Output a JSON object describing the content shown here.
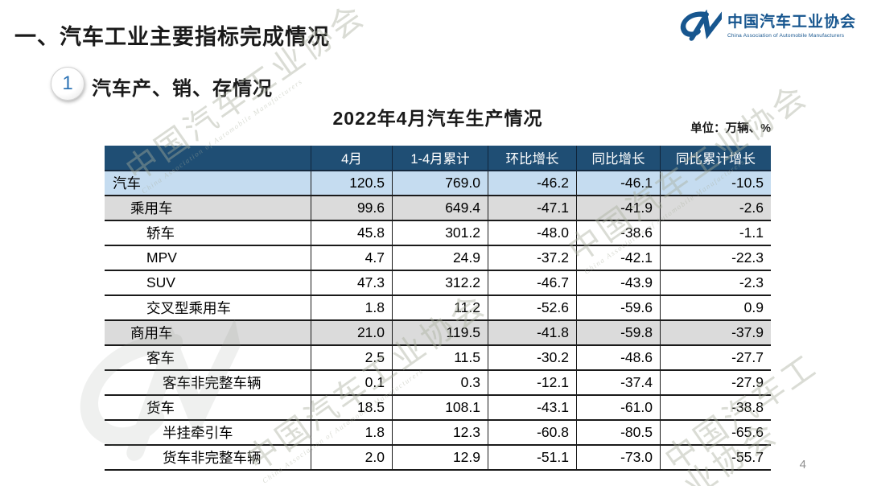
{
  "page": {
    "main_title": "一、汽车工业主要指标完成情况",
    "section_number": "1",
    "section_title": "汽车产、销、存情况",
    "page_number": "4"
  },
  "logo": {
    "cn": "中国汽车工业协会",
    "en": "China Association of Automobile Manufacturers"
  },
  "watermark": {
    "text": "中国汽车工业协会"
  },
  "table": {
    "title": "2022年4月汽车生产情况",
    "unit_label": "单位：万辆、%",
    "columns": [
      "",
      "4月",
      "1-4月累计",
      "环比增长",
      "同比增长",
      "同比累计增长"
    ],
    "rows": [
      {
        "label": "汽车",
        "indent": 0,
        "style": "blue",
        "values": [
          "120.5",
          "769.0",
          "-46.2",
          "-46.1",
          "-10.5"
        ]
      },
      {
        "label": "乘用车",
        "indent": 1,
        "style": "gray",
        "values": [
          "99.6",
          "649.4",
          "-47.1",
          "-41.9",
          "-2.6"
        ]
      },
      {
        "label": "轿车",
        "indent": 2,
        "style": "white",
        "values": [
          "45.8",
          "301.2",
          "-48.0",
          "-38.6",
          "-1.1"
        ]
      },
      {
        "label": "MPV",
        "indent": 2,
        "style": "white",
        "values": [
          "4.7",
          "24.9",
          "-37.2",
          "-42.1",
          "-22.3"
        ]
      },
      {
        "label": "SUV",
        "indent": 2,
        "style": "white",
        "values": [
          "47.3",
          "312.2",
          "-46.7",
          "-43.9",
          "-2.3"
        ]
      },
      {
        "label": "交叉型乘用车",
        "indent": 2,
        "style": "white",
        "values": [
          "1.8",
          "11.2",
          "-52.6",
          "-59.6",
          "0.9"
        ]
      },
      {
        "label": "商用车",
        "indent": 1,
        "style": "gray",
        "values": [
          "21.0",
          "119.5",
          "-41.8",
          "-59.8",
          "-37.9"
        ]
      },
      {
        "label": "客车",
        "indent": 2,
        "style": "white",
        "values": [
          "2.5",
          "11.5",
          "-30.2",
          "-48.6",
          "-27.7"
        ]
      },
      {
        "label": "客车非完整车辆",
        "indent": 3,
        "style": "white",
        "values": [
          "0.1",
          "0.3",
          "-12.1",
          "-37.4",
          "-27.9"
        ]
      },
      {
        "label": "货车",
        "indent": 2,
        "style": "white",
        "values": [
          "18.5",
          "108.1",
          "-43.1",
          "-61.0",
          "-38.8"
        ]
      },
      {
        "label": "半挂牵引车",
        "indent": 3,
        "style": "white",
        "values": [
          "1.8",
          "12.3",
          "-60.8",
          "-80.5",
          "-65.6"
        ]
      },
      {
        "label": "货车非完整车辆",
        "indent": 3,
        "style": "white",
        "values": [
          "2.0",
          "12.9",
          "-51.1",
          "-73.0",
          "-55.7"
        ]
      }
    ]
  },
  "colors": {
    "header_bg": "#1F4E74",
    "row_highlight_blue": "#C5DCF0",
    "row_highlight_gray": "#DBDBDB",
    "border": "#1A1A1A",
    "logo_blue": "#17568F",
    "badge_number_blue": "#2E74B5",
    "watermark_gray": "#A8AE9C"
  }
}
